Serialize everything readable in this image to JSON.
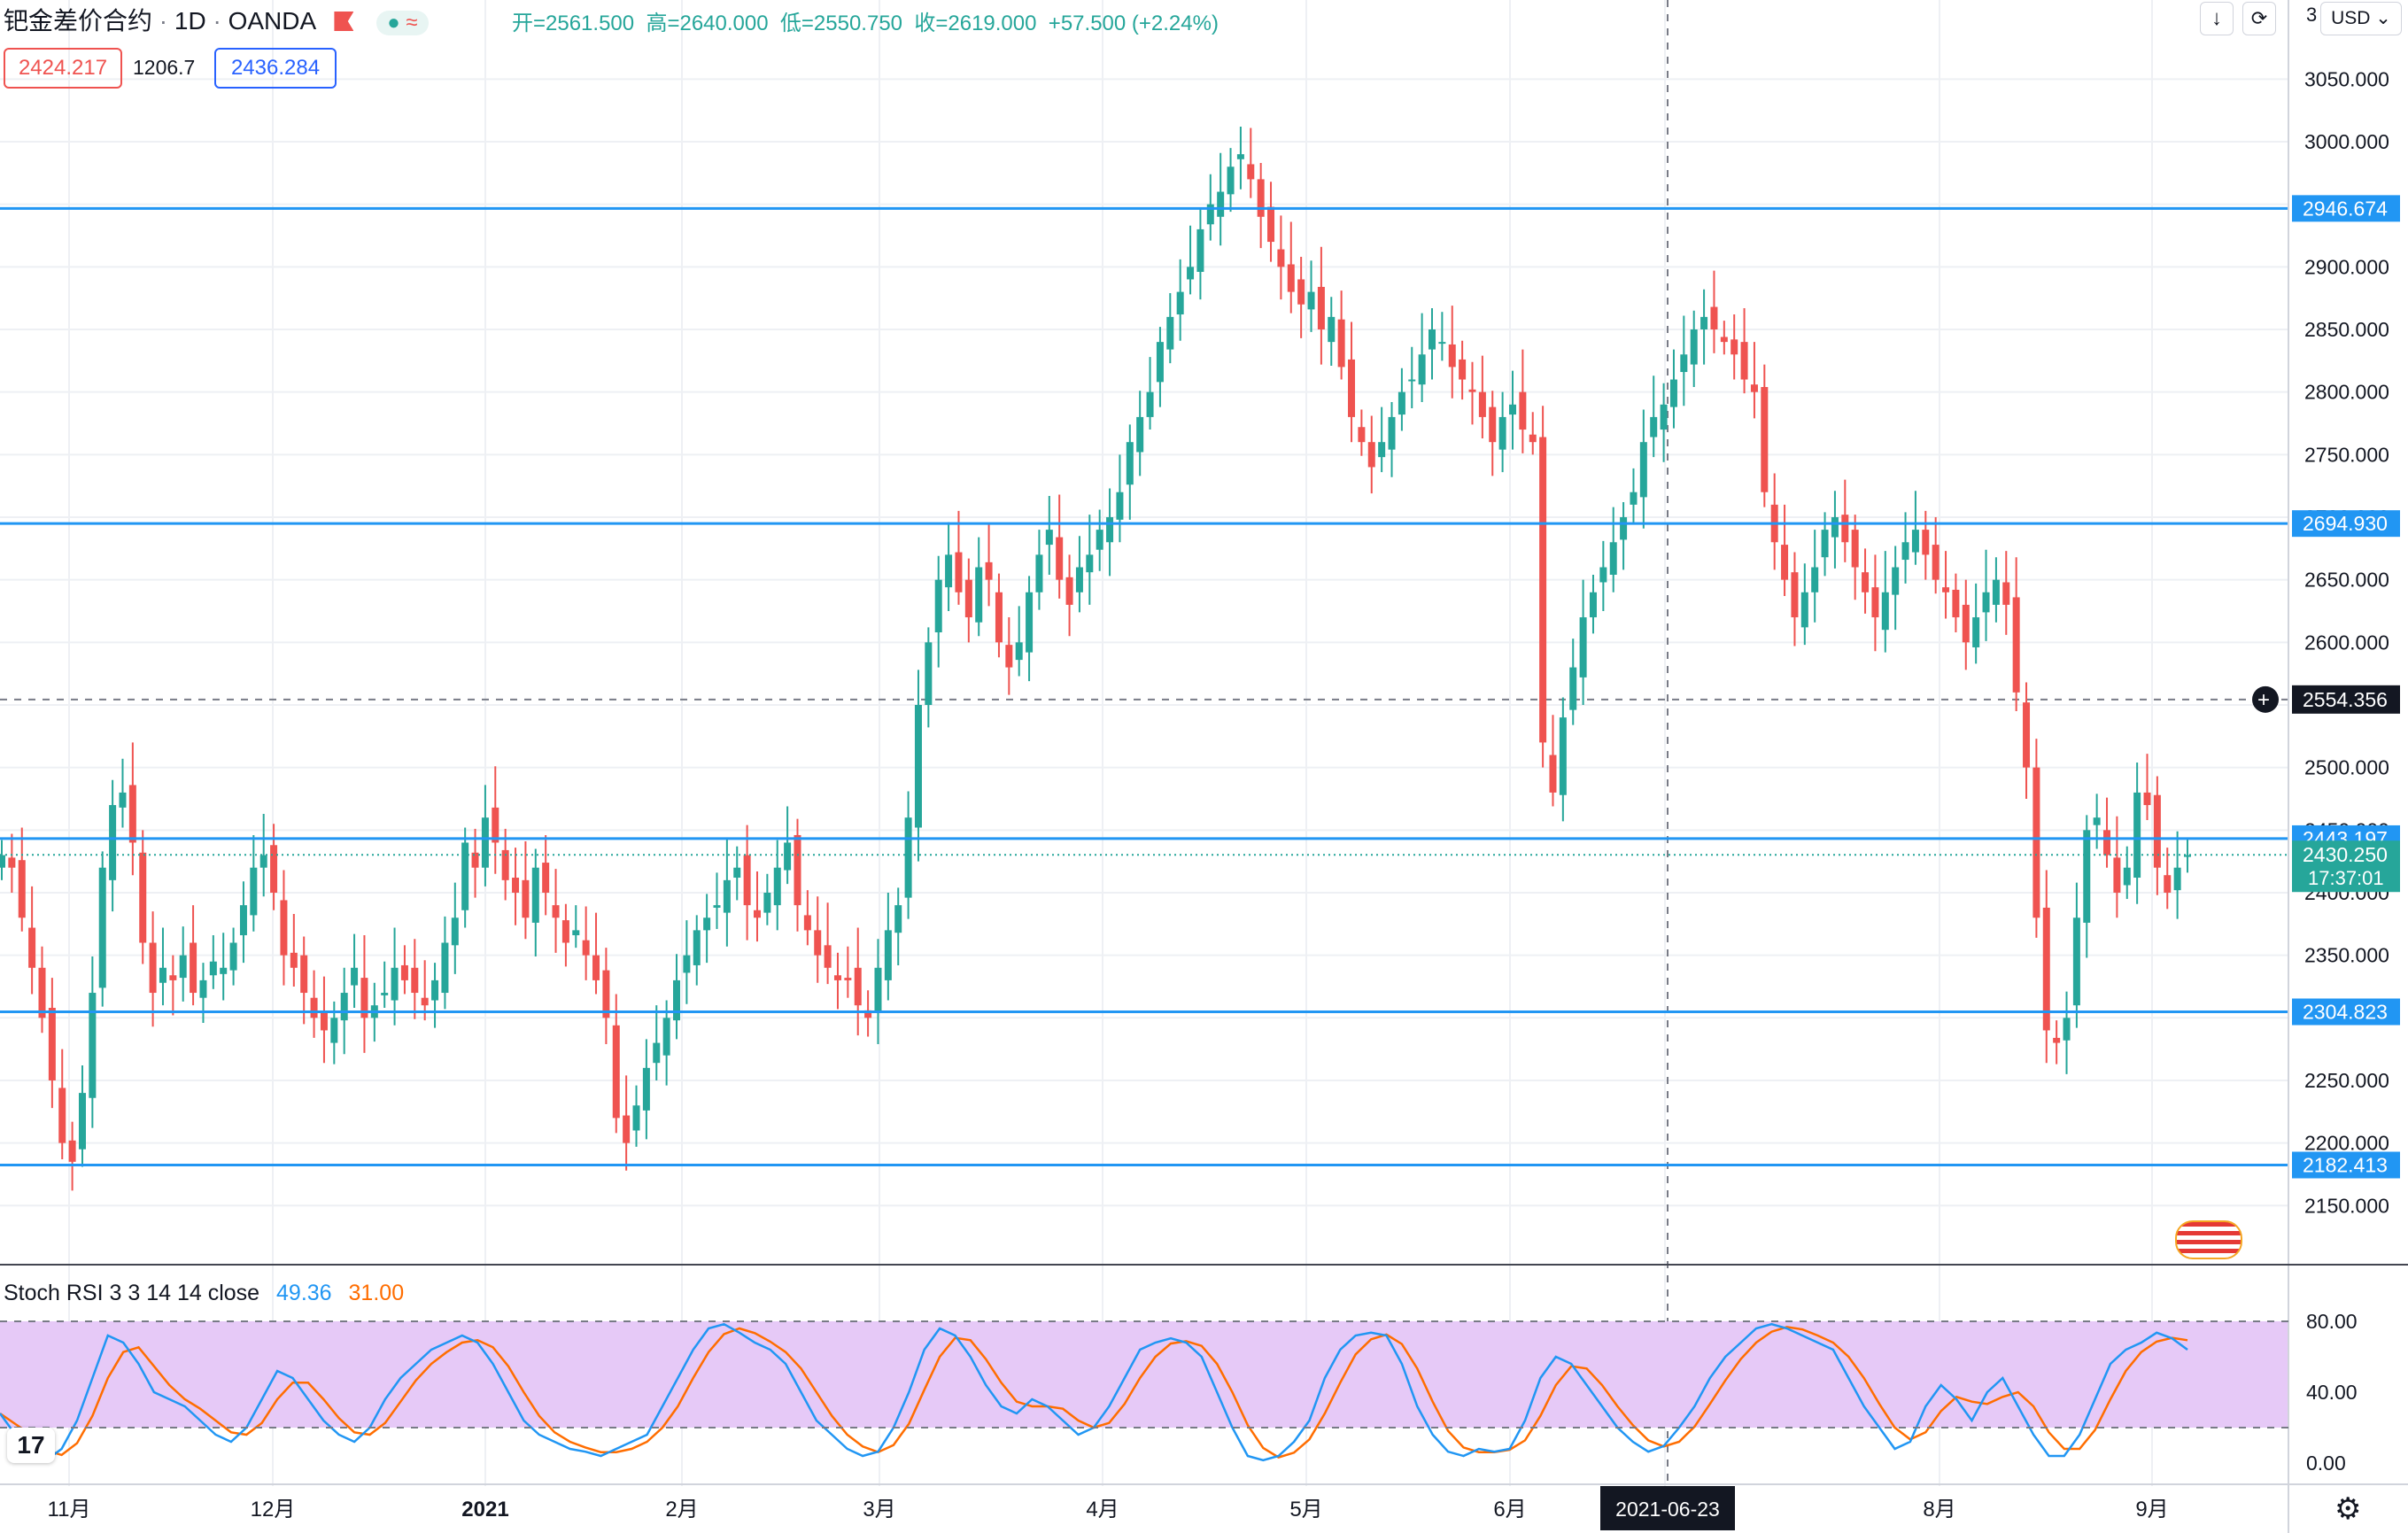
{
  "header": {
    "symbol": "钯金差价合约",
    "interval": "1D",
    "exchange": "OANDA",
    "ohlc": "开=2561.500  高=2640.000  低=2550.750  收=2619.000  +57.500 (+2.24%)",
    "bid": "2424.217",
    "spread": "1206.7",
    "ask": "2436.284"
  },
  "toolbar": {
    "download_icon": "download-icon",
    "fullscreen_icon": "fullscreen-icon",
    "currency": "USD",
    "currency_prefix": "3"
  },
  "price_axis": {
    "labels": [
      "3050.000",
      "3000.000",
      "2950.000",
      "2900.000",
      "2850.000",
      "2800.000",
      "2750.000",
      "2700.000",
      "2650.000",
      "2600.000",
      "2550.000",
      "2500.000",
      "2450.000",
      "2400.000",
      "2350.000",
      "2300.000",
      "2250.000",
      "2200.000",
      "2150.000"
    ],
    "hlines": [
      {
        "price": 2946.674,
        "label": "2946.674"
      },
      {
        "price": 2694.93,
        "label": "2694.930"
      },
      {
        "price": 2443.197,
        "label": "2443.197"
      },
      {
        "price": 2304.823,
        "label": "2304.823"
      },
      {
        "price": 2182.413,
        "label": "2182.413"
      }
    ],
    "crosshair_price": "2554.356",
    "last_price": "2430.250",
    "countdown": "17:37:01"
  },
  "time_axis": {
    "labels": [
      "11月",
      "12月",
      "2021",
      "2月",
      "3月",
      "4月",
      "5月",
      "6月",
      "2021-06-23",
      "8月",
      "9月"
    ]
  },
  "indicator": {
    "name": "Stoch RSI 3 3 14 14 close",
    "k_value": "49.36",
    "d_value": "31.00",
    "axis_labels": [
      "80.00",
      "40.00",
      "0.00"
    ]
  },
  "colors": {
    "up": "#26a69a",
    "down": "#ef5350",
    "hline": "#2196f3",
    "k_line": "#2196f3",
    "d_line": "#ff6d00",
    "band": "#e1bee7"
  },
  "chart_data": {
    "type": "candlestick",
    "ylim": [
      2120,
      3085
    ],
    "closes": [
      2430,
      2420,
      2380,
      2340,
      2300,
      2250,
      2200,
      2185,
      2240,
      2320,
      2420,
      2470,
      2480,
      2440,
      2360,
      2320,
      2340,
      2330,
      2350,
      2320,
      2330,
      2345,
      2340,
      2360,
      2390,
      2420,
      2430,
      2400,
      2350,
      2340,
      2320,
      2300,
      2290,
      2300,
      2320,
      2340,
      2300,
      2310,
      2320,
      2340,
      2330,
      2320,
      2310,
      2330,
      2360,
      2380,
      2440,
      2420,
      2460,
      2440,
      2410,
      2400,
      2380,
      2420,
      2400,
      2380,
      2360,
      2370,
      2350,
      2330,
      2300,
      2220,
      2200,
      2230,
      2260,
      2280,
      2300,
      2330,
      2350,
      2370,
      2380,
      2390,
      2410,
      2420,
      2390,
      2380,
      2400,
      2420,
      2440,
      2390,
      2370,
      2350,
      2340,
      2330,
      2330,
      2310,
      2300,
      2340,
      2370,
      2390,
      2460,
      2550,
      2600,
      2650,
      2670,
      2640,
      2620,
      2660,
      2650,
      2600,
      2580,
      2600,
      2640,
      2670,
      2690,
      2650,
      2630,
      2660,
      2670,
      2690,
      2700,
      2720,
      2760,
      2780,
      2800,
      2840,
      2860,
      2880,
      2900,
      2930,
      2950,
      2960,
      2980,
      2990,
      2970,
      2940,
      2920,
      2900,
      2880,
      2870,
      2880,
      2850,
      2860,
      2820,
      2780,
      2760,
      2740,
      2760,
      2780,
      2800,
      2810,
      2830,
      2850,
      2840,
      2820,
      2810,
      2800,
      2780,
      2760,
      2780,
      2790,
      2770,
      2760,
      2520,
      2480,
      2540,
      2580,
      2620,
      2640,
      2660,
      2680,
      2700,
      2720,
      2760,
      2780,
      2790,
      2810,
      2830,
      2850,
      2860,
      2850,
      2840,
      2830,
      2810,
      2800,
      2720,
      2680,
      2650,
      2620,
      2640,
      2660,
      2690,
      2700,
      2680,
      2660,
      2640,
      2620,
      2640,
      2660,
      2680,
      2690,
      2670,
      2650,
      2640,
      2620,
      2600,
      2620,
      2640,
      2650,
      2630,
      2560,
      2500,
      2380,
      2290,
      2280,
      2300,
      2380,
      2450,
      2460,
      2430,
      2400,
      2420,
      2480,
      2470,
      2420,
      2400,
      2420,
      2430
    ],
    "stoch_k": [
      35,
      20,
      5,
      2,
      10,
      30,
      60,
      90,
      85,
      70,
      50,
      45,
      40,
      30,
      20,
      15,
      25,
      45,
      65,
      60,
      45,
      30,
      20,
      15,
      25,
      45,
      60,
      70,
      80,
      85,
      90,
      85,
      70,
      50,
      30,
      20,
      15,
      10,
      8,
      5,
      10,
      15,
      20,
      40,
      60,
      80,
      95,
      98,
      92,
      85,
      80,
      70,
      50,
      30,
      20,
      10,
      5,
      8,
      25,
      50,
      80,
      95,
      90,
      75,
      55,
      40,
      35,
      45,
      40,
      30,
      20,
      25,
      40,
      60,
      80,
      85,
      88,
      85,
      75,
      50,
      25,
      5,
      2,
      5,
      15,
      30,
      60,
      80,
      90,
      92,
      90,
      70,
      40,
      20,
      8,
      5,
      10,
      8,
      10,
      30,
      60,
      75,
      70,
      55,
      40,
      25,
      15,
      8,
      12,
      25,
      40,
      60,
      75,
      85,
      95,
      98,
      95,
      90,
      85,
      80,
      60,
      40,
      25,
      10,
      15,
      40,
      55,
      45,
      30,
      50,
      60,
      40,
      20,
      5,
      5,
      20,
      45,
      70,
      80,
      85,
      92,
      88,
      80
    ]
  }
}
